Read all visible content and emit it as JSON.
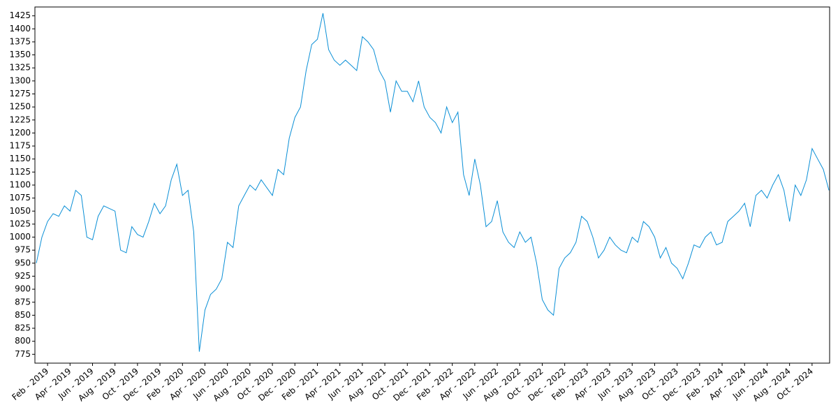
{
  "chart_data": {
    "type": "line",
    "categories": [
      null,
      null,
      "Feb - 2019",
      null,
      null,
      null,
      "Apr - 2019",
      null,
      null,
      null,
      "Jun - 2019",
      null,
      null,
      null,
      "Aug - 2019",
      null,
      null,
      null,
      "Oct - 2019",
      null,
      null,
      null,
      "Dec - 2019",
      null,
      null,
      null,
      "Feb - 2020",
      null,
      null,
      null,
      "Apr - 2020",
      null,
      null,
      null,
      "Jun - 2020",
      null,
      null,
      null,
      "Aug - 2020",
      null,
      null,
      null,
      "Oct - 2020",
      null,
      null,
      null,
      "Dec - 2020",
      null,
      null,
      null,
      "Feb - 2021",
      null,
      null,
      null,
      "Apr - 2021",
      null,
      null,
      null,
      "Jun - 2021",
      null,
      null,
      null,
      "Aug - 2021",
      null,
      null,
      null,
      "Oct - 2021",
      null,
      null,
      null,
      "Dec - 2021",
      null,
      null,
      null,
      "Feb - 2022",
      null,
      null,
      null,
      "Apr - 2022",
      null,
      null,
      null,
      "Jun - 2022",
      null,
      null,
      null,
      "Aug - 2022",
      null,
      null,
      null,
      "Oct - 2022",
      null,
      null,
      null,
      "Dec - 2022",
      null,
      null,
      null,
      "Feb - 2023",
      null,
      null,
      null,
      "Apr - 2023",
      null,
      null,
      null,
      "Jun - 2023",
      null,
      null,
      null,
      "Aug - 2023",
      null,
      null,
      null,
      "Oct - 2023",
      null,
      null,
      null,
      "Dec - 2023",
      null,
      null,
      null,
      "Feb - 2024",
      null,
      null,
      null,
      "Apr - 2024",
      null,
      null,
      null,
      "Jun - 2024",
      null,
      null,
      null,
      "Aug - 2024",
      null,
      null,
      null,
      "Oct - 2024",
      null,
      null,
      null
    ],
    "series": [
      {
        "name": null,
        "color": "#0a8fd6",
        "values": [
          950,
          1000,
          1030,
          1045,
          1040,
          1060,
          1050,
          1090,
          1080,
          1000,
          995,
          1040,
          1060,
          1055,
          1050,
          975,
          970,
          1020,
          1005,
          1000,
          1030,
          1065,
          1045,
          1060,
          1110,
          1140,
          1080,
          1090,
          1010,
          780,
          860,
          890,
          900,
          920,
          990,
          980,
          1060,
          1080,
          1100,
          1090,
          1110,
          1095,
          1080,
          1130,
          1120,
          1190,
          1230,
          1250,
          1320,
          1370,
          1380,
          1430,
          1360,
          1340,
          1330,
          1340,
          1330,
          1320,
          1385,
          1375,
          1360,
          1320,
          1300,
          1240,
          1300,
          1280,
          1280,
          1260,
          1300,
          1250,
          1230,
          1220,
          1200,
          1250,
          1220,
          1240,
          1120,
          1080,
          1150,
          1100,
          1020,
          1030,
          1070,
          1010,
          990,
          980,
          1010,
          990,
          1000,
          950,
          880,
          860,
          850,
          940,
          960,
          970,
          990,
          1040,
          1030,
          1000,
          960,
          975,
          1000,
          985,
          975,
          970,
          1000,
          990,
          1030,
          1020,
          1000,
          960,
          980,
          950,
          940,
          920,
          950,
          985,
          980,
          1000,
          1010,
          985,
          990,
          1030,
          1040,
          1050,
          1065,
          1020,
          1080,
          1090,
          1075,
          1100,
          1120,
          1090,
          1030,
          1100,
          1080,
          1110,
          1170,
          1150,
          1130,
          1090
        ]
      }
    ],
    "ylim": [
      758,
      1442
    ],
    "yticks": [
      775,
      800,
      825,
      850,
      875,
      900,
      925,
      950,
      975,
      1000,
      1025,
      1050,
      1075,
      1100,
      1125,
      1150,
      1175,
      1200,
      1225,
      1250,
      1275,
      1300,
      1325,
      1350,
      1375,
      1400,
      1425
    ]
  }
}
